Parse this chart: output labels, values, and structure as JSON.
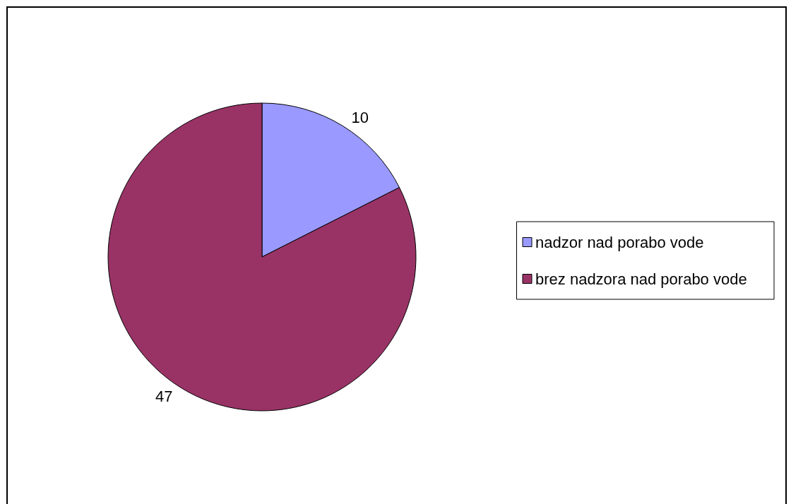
{
  "chart_data": {
    "type": "pie",
    "categories": [
      "nadzor nad porabo vode",
      "brez nadzora nad porabo vode"
    ],
    "values": [
      10,
      47
    ],
    "colors": [
      "#9999ff",
      "#993366"
    ],
    "data_labels": true,
    "legend": "right"
  }
}
